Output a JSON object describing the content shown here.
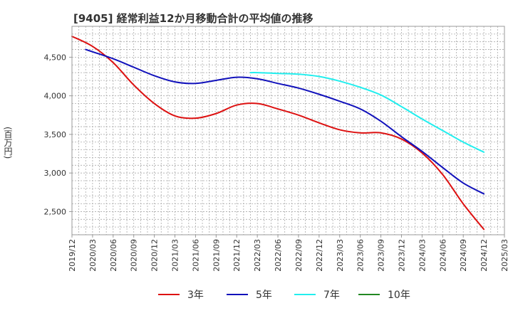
{
  "chart_data": {
    "type": "line",
    "title": "[9405]  経常利益12か月移動合計の平均値の推移",
    "ylabel": "(百万円)",
    "xlabel": "",
    "ylim": [
      2200,
      4900
    ],
    "xlim": [
      "2019/12",
      "2025/03"
    ],
    "x_ticks": [
      "2019/12",
      "2020/03",
      "2020/06",
      "2020/09",
      "2020/12",
      "2021/03",
      "2021/06",
      "2021/09",
      "2021/12",
      "2022/03",
      "2022/06",
      "2022/09",
      "2022/12",
      "2023/03",
      "2023/06",
      "2023/09",
      "2023/12",
      "2024/03",
      "2024/06",
      "2024/09",
      "2024/12",
      "2025/03"
    ],
    "y_ticks": [
      2500,
      3000,
      3500,
      4000,
      4500
    ],
    "y_tick_labels": [
      "2,500",
      "3,000",
      "3,500",
      "4,000",
      "4,500"
    ],
    "grid": true,
    "legend_position": "bottom",
    "series": [
      {
        "name": "3年",
        "color": "#dd1111",
        "x": [
          "2019/12",
          "2020/03",
          "2020/06",
          "2020/09",
          "2020/12",
          "2021/03",
          "2021/06",
          "2021/09",
          "2021/12",
          "2022/03",
          "2022/06",
          "2022/09",
          "2022/12",
          "2023/03",
          "2023/06",
          "2023/09",
          "2023/12",
          "2024/03",
          "2024/06",
          "2024/09",
          "2024/12"
        ],
        "values": [
          4770,
          4640,
          4430,
          4140,
          3900,
          3740,
          3710,
          3770,
          3880,
          3900,
          3830,
          3750,
          3650,
          3560,
          3520,
          3520,
          3440,
          3260,
          2980,
          2600,
          2270
        ]
      },
      {
        "name": "5年",
        "color": "#1111bb",
        "x": [
          "2020/02",
          "2020/03",
          "2020/06",
          "2020/09",
          "2020/12",
          "2021/03",
          "2021/06",
          "2021/09",
          "2021/12",
          "2022/03",
          "2022/06",
          "2022/09",
          "2022/12",
          "2023/03",
          "2023/06",
          "2023/09",
          "2023/12",
          "2024/03",
          "2024/06",
          "2024/09",
          "2024/12"
        ],
        "values": [
          4600,
          4570,
          4480,
          4370,
          4260,
          4180,
          4160,
          4200,
          4240,
          4220,
          4160,
          4100,
          4020,
          3930,
          3830,
          3670,
          3470,
          3280,
          3070,
          2870,
          2730
        ]
      },
      {
        "name": "7年",
        "color": "#22eeee",
        "x": [
          "2022/02",
          "2022/03",
          "2022/06",
          "2022/09",
          "2022/12",
          "2023/03",
          "2023/06",
          "2023/09",
          "2023/12",
          "2024/03",
          "2024/06",
          "2024/09",
          "2024/12"
        ],
        "values": [
          4300,
          4300,
          4290,
          4280,
          4250,
          4190,
          4110,
          4010,
          3860,
          3700,
          3550,
          3400,
          3270
        ]
      },
      {
        "name": "10年",
        "color": "#228822",
        "x": [],
        "values": []
      }
    ]
  }
}
